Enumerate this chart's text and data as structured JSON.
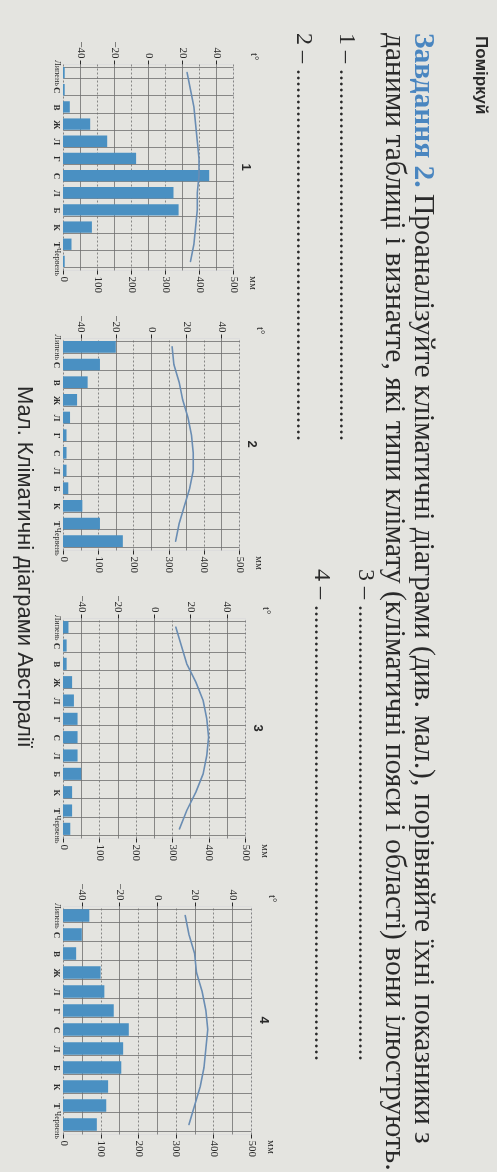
{
  "chart_data": [
    {
      "type": "other",
      "title": "Поміркуй",
      "annotations": [
        "Завдання 2.",
        "Проаналізуйте кліматичні діаграми (див. мал.), порівняйте їхні показники з",
        "даними таблиці і визначте, які типи клімату (кліматичні пояси і області) вони ілюструють.",
        "1 – ..............................................................",
        "3 – ............................................................................",
        "2 – ..............................................................",
        "4 – ............................................................................"
      ]
    },
    {
      "type": "bar",
      "title": "1",
      "orientation": "horizontal",
      "categories": [
        "Липень",
        "С",
        "В",
        "Ж",
        "Л",
        "Г",
        "С",
        "Л",
        "Б",
        "К",
        "Т",
        "Червень"
      ],
      "annotations": [
        "мм"
      ],
      "xlim": [
        0,
        500
      ],
      "xticks": [
        0,
        100,
        200,
        300,
        400,
        500
      ],
      "x2label": "t°",
      "x2lim": [
        -50,
        50
      ],
      "x2ticks": [
        -40,
        -20,
        0,
        20,
        40
      ],
      "grid": true,
      "series": [
        {
          "type": "bar",
          "color": "#4a90c2",
          "values": [
            5,
            5,
            20,
            80,
            130,
            215,
            430,
            325,
            340,
            85,
            25,
            5
          ]
        },
        {
          "type": "line",
          "axis": "x2",
          "color": "#6a8db3",
          "values": [
            23,
            25,
            27,
            28,
            29,
            30,
            30,
            29,
            29,
            28,
            27,
            25
          ]
        }
      ]
    },
    {
      "type": "bar",
      "title": "2",
      "orientation": "horizontal",
      "categories": [
        "Липень",
        "С",
        "В",
        "Ж",
        "Л",
        "Г",
        "С",
        "Л",
        "Б",
        "К",
        "Т",
        "Червень"
      ],
      "annotations": [
        "мм"
      ],
      "xlim": [
        0,
        500
      ],
      "xticks": [
        0,
        100,
        200,
        300,
        400,
        500
      ],
      "x2label": "t°",
      "x2lim": [
        -50,
        50
      ],
      "x2ticks": [
        -40,
        -20,
        0,
        20,
        40
      ],
      "grid": true,
      "series": [
        {
          "type": "bar",
          "color": "#4a90c2",
          "values": [
            150,
            105,
            70,
            40,
            20,
            10,
            10,
            10,
            15,
            55,
            105,
            170
          ]
        },
        {
          "type": "line",
          "axis": "x2",
          "color": "#6a8db3",
          "values": [
            12,
            13,
            16,
            18,
            21,
            23,
            24,
            24,
            22,
            19,
            16,
            14
          ]
        }
      ]
    },
    {
      "type": "bar",
      "title": "3",
      "orientation": "horizontal",
      "categories": [
        "Липень",
        "С",
        "В",
        "Ж",
        "Л",
        "Г",
        "С",
        "Л",
        "Б",
        "К",
        "Т",
        "Червень"
      ],
      "annotations": [
        "мм"
      ],
      "xlim": [
        0,
        500
      ],
      "xticks": [
        0,
        100,
        200,
        300,
        400,
        500
      ],
      "x2label": "t°",
      "x2lim": [
        -50,
        50
      ],
      "x2ticks": [
        -40,
        -20,
        0,
        20,
        40
      ],
      "grid": true,
      "series": [
        {
          "type": "bar",
          "color": "#4a90c2",
          "values": [
            15,
            10,
            10,
            25,
            30,
            40,
            40,
            40,
            50,
            25,
            25,
            20
          ]
        },
        {
          "type": "line",
          "axis": "x2",
          "color": "#6a8db3",
          "values": [
            12,
            15,
            18,
            23,
            27,
            29,
            30,
            29,
            27,
            23,
            18,
            14
          ]
        }
      ]
    },
    {
      "type": "bar",
      "title": "4",
      "orientation": "horizontal",
      "categories": [
        "Липень",
        "С",
        "В",
        "Ж",
        "Л",
        "Г",
        "С",
        "Л",
        "Б",
        "К",
        "Т",
        "Червень"
      ],
      "annotations": [
        "мм"
      ],
      "xlim": [
        0,
        500
      ],
      "xticks": [
        0,
        100,
        200,
        300,
        400,
        500
      ],
      "x2label": "t°",
      "x2lim": [
        -50,
        50
      ],
      "x2ticks": [
        -40,
        -20,
        0,
        20,
        40
      ],
      "grid": true,
      "series": [
        {
          "type": "bar",
          "color": "#4a90c2",
          "values": [
            70,
            50,
            35,
            100,
            110,
            135,
            175,
            160,
            155,
            120,
            115,
            90
          ]
        },
        {
          "type": "line",
          "axis": "x2",
          "color": "#6a8db3",
          "values": [
            15,
            17,
            20,
            21,
            24,
            26,
            27,
            26,
            25,
            23,
            20,
            17
          ]
        }
      ]
    },
    {
      "type": "other",
      "annotations": [
        "Мал. Кліматичні діаграми Австралії"
      ]
    }
  ]
}
